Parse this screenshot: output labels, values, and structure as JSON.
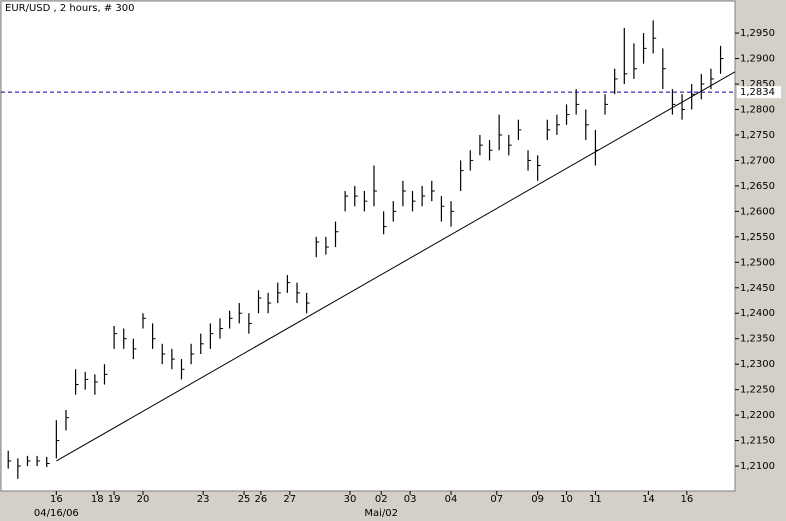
{
  "chart_data": {
    "type": "ohlc",
    "title": "EUR/USD , 2 hours, # 300",
    "x": [
      0,
      4,
      8,
      12,
      16,
      20,
      24,
      28,
      32,
      36,
      40,
      44,
      48,
      52,
      56,
      60,
      64,
      68,
      72,
      76,
      80,
      84,
      88,
      92,
      96,
      100,
      104,
      108,
      112,
      116,
      120,
      124,
      128,
      132,
      136,
      140,
      144,
      148,
      152,
      156,
      160,
      164,
      168,
      172,
      176,
      180,
      184,
      188,
      192,
      196,
      200,
      204,
      208,
      212,
      216,
      220,
      224,
      228,
      232,
      236,
      240,
      244,
      248,
      252,
      256,
      260,
      264,
      268,
      272,
      276,
      280,
      284,
      288,
      292,
      296
    ],
    "high": [
      1.213,
      1.2115,
      1.212,
      1.212,
      1.2118,
      1.219,
      1.221,
      1.229,
      1.2285,
      1.228,
      1.23,
      1.2375,
      1.237,
      1.235,
      1.24,
      1.238,
      1.234,
      1.233,
      1.231,
      1.234,
      1.236,
      1.238,
      1.239,
      1.2405,
      1.242,
      1.24,
      1.2445,
      1.244,
      1.246,
      1.2475,
      1.246,
      1.244,
      1.255,
      1.255,
      1.258,
      1.264,
      1.265,
      1.264,
      1.269,
      1.26,
      1.262,
      1.266,
      1.264,
      1.265,
      1.266,
      1.263,
      1.262,
      1.27,
      1.272,
      1.275,
      1.274,
      1.279,
      1.275,
      1.278,
      1.272,
      1.271,
      1.278,
      1.279,
      1.281,
      1.284,
      1.28,
      1.276,
      1.283,
      1.288,
      1.296,
      1.293,
      1.295,
      1.2975,
      1.292,
      1.284,
      1.283,
      1.285,
      1.287,
      1.288,
      1.2925
    ],
    "low": [
      1.2095,
      1.2075,
      1.21,
      1.21,
      1.2098,
      1.2115,
      1.217,
      1.224,
      1.225,
      1.224,
      1.226,
      1.233,
      1.233,
      1.231,
      1.237,
      1.233,
      1.23,
      1.229,
      1.227,
      1.23,
      1.232,
      1.233,
      1.235,
      1.237,
      1.238,
      1.236,
      1.24,
      1.24,
      1.242,
      1.244,
      1.242,
      1.24,
      1.251,
      1.2515,
      1.253,
      1.26,
      1.261,
      1.26,
      1.261,
      1.2555,
      1.258,
      1.261,
      1.26,
      1.261,
      1.262,
      1.258,
      1.257,
      1.264,
      1.268,
      1.271,
      1.27,
      1.272,
      1.271,
      1.274,
      1.268,
      1.266,
      1.274,
      1.275,
      1.277,
      1.279,
      1.274,
      1.269,
      1.279,
      1.283,
      1.285,
      1.286,
      1.289,
      1.291,
      1.284,
      1.279,
      1.278,
      1.28,
      1.282,
      1.284,
      1.287
    ],
    "close": [
      1.211,
      1.21,
      1.211,
      1.211,
      1.2105,
      1.215,
      1.2195,
      1.226,
      1.227,
      1.2265,
      1.228,
      1.236,
      1.235,
      1.233,
      1.239,
      1.235,
      1.232,
      1.231,
      1.229,
      1.232,
      1.234,
      1.236,
      1.237,
      1.239,
      1.24,
      1.238,
      1.243,
      1.242,
      1.244,
      1.246,
      1.244,
      1.242,
      1.254,
      1.253,
      1.256,
      1.263,
      1.263,
      1.262,
      1.264,
      1.257,
      1.26,
      1.264,
      1.262,
      1.263,
      1.264,
      1.261,
      1.26,
      1.268,
      1.27,
      1.273,
      1.272,
      1.275,
      1.273,
      1.276,
      1.27,
      1.269,
      1.276,
      1.277,
      1.279,
      1.281,
      1.277,
      1.272,
      1.281,
      1.286,
      1.287,
      1.288,
      1.292,
      1.294,
      1.288,
      1.281,
      1.28,
      1.283,
      1.285,
      1.286,
      1.29
    ],
    "color": "#000000",
    "xlim": [
      -3,
      302
    ],
    "xticks": [
      {
        "value": 20,
        "label": "16"
      },
      {
        "value": 37,
        "label": "18"
      },
      {
        "value": 44,
        "label": "19"
      },
      {
        "value": 56,
        "label": "20"
      },
      {
        "value": 81,
        "label": "23"
      },
      {
        "value": 98,
        "label": "25"
      },
      {
        "value": 105,
        "label": "26"
      },
      {
        "value": 117,
        "label": "27"
      },
      {
        "value": 142,
        "label": "30"
      },
      {
        "value": 155,
        "label": "02"
      },
      {
        "value": 167,
        "label": "03"
      },
      {
        "value": 184,
        "label": "04"
      },
      {
        "value": 203,
        "label": "07"
      },
      {
        "value": 220,
        "label": "09"
      },
      {
        "value": 232,
        "label": "10"
      },
      {
        "value": 244,
        "label": "11"
      },
      {
        "value": 266,
        "label": "14"
      },
      {
        "value": 282,
        "label": "16"
      }
    ],
    "xsublabels": [
      {
        "value": 20,
        "label": "04/16/06"
      },
      {
        "value": 155,
        "label": "Mai/02"
      }
    ],
    "ylim": [
      1.2051,
      1.3013
    ],
    "yticks": [
      {
        "value": 1.21,
        "label": "1,2100"
      },
      {
        "value": 1.215,
        "label": "1,2150"
      },
      {
        "value": 1.22,
        "label": "1,2200"
      },
      {
        "value": 1.225,
        "label": "1,2250"
      },
      {
        "value": 1.23,
        "label": "1,2300"
      },
      {
        "value": 1.235,
        "label": "1,2350"
      },
      {
        "value": 1.24,
        "label": "1,2400"
      },
      {
        "value": 1.245,
        "label": "1,2450"
      },
      {
        "value": 1.25,
        "label": "1,2500"
      },
      {
        "value": 1.255,
        "label": "1,2550"
      },
      {
        "value": 1.26,
        "label": "1,2600"
      },
      {
        "value": 1.265,
        "label": "1,2650"
      },
      {
        "value": 1.27,
        "label": "1,2700"
      },
      {
        "value": 1.275,
        "label": "1,2750"
      },
      {
        "value": 1.28,
        "label": "1,2800"
      },
      {
        "value": 1.285,
        "label": "1,2850"
      },
      {
        "value": 1.29,
        "label": "1,2900"
      },
      {
        "value": 1.295,
        "label": "1,2950"
      }
    ],
    "level": {
      "value": 1.2834,
      "label": "1,2834",
      "color": "#0000aa"
    },
    "trendline": {
      "x": [
        20,
        302
      ],
      "y": [
        1.211,
        1.2874
      ],
      "color": "#000000"
    }
  }
}
